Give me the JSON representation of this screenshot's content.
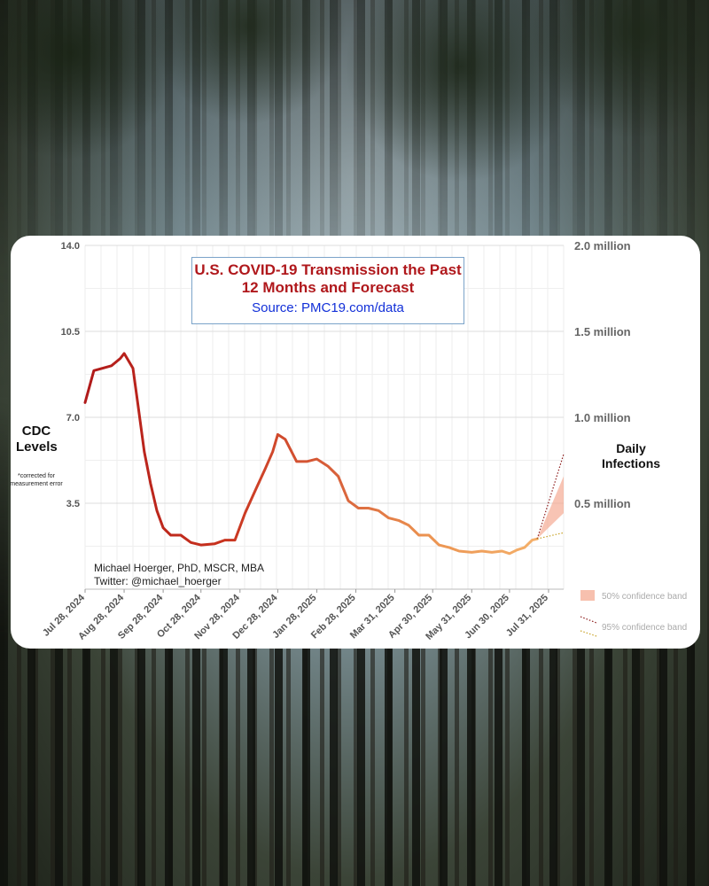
{
  "chart_data": {
    "type": "line",
    "title": "U.S. COVID-19 Transmission the Past 12 Months and Forecast",
    "subtitle": "Source: PMC19.com/data",
    "ylabel_left": "CDC Levels",
    "ylabel_left_note": "*corrected for measurement error",
    "ylabel_right": "Daily Infections",
    "y_left_ticks": [
      "3.5",
      "7.0",
      "10.5",
      "14.0"
    ],
    "y_right_ticks": [
      "0.5 million",
      "1.0 million",
      "1.5 million",
      "2.0 million"
    ],
    "ylim_left": [
      0,
      14
    ],
    "x_ticks": [
      "Jul 28, 2024",
      "Aug 28, 2024",
      "Sep 28, 2024",
      "Oct 28, 2024",
      "Nov 28, 2024",
      "Dec 28, 2024",
      "Jan 28, 2025",
      "Feb 28, 2025",
      "Mar 31, 2025",
      "Apr 30, 2025",
      "May 31, 2025",
      "Jun 30, 2025",
      "Jul 31, 2025"
    ],
    "credit": [
      "Michael Hoerger, PhD, MSCR, MBA",
      "Twitter: @michael_hoerger"
    ],
    "legend": [
      {
        "label": "50% confidence band",
        "color": "#f4a58c"
      },
      {
        "label": "95% confidence band",
        "color": "#8b1a1a"
      }
    ],
    "legend_position": "bottom-right",
    "grid": true,
    "series": [
      {
        "values": [
          {
            "x": "2024-07-28",
            "y": 7.6
          },
          {
            "x": "2024-08-04",
            "y": 8.9
          },
          {
            "x": "2024-08-11",
            "y": 9.0
          },
          {
            "x": "2024-08-18",
            "y": 9.1
          },
          {
            "x": "2024-08-25",
            "y": 9.4
          },
          {
            "x": "2024-08-28",
            "y": 9.6
          },
          {
            "x": "2024-09-04",
            "y": 9.0
          },
          {
            "x": "2024-09-08",
            "y": 7.5
          },
          {
            "x": "2024-09-13",
            "y": 5.6
          },
          {
            "x": "2024-09-18",
            "y": 4.3
          },
          {
            "x": "2024-09-23",
            "y": 3.2
          },
          {
            "x": "2024-09-28",
            "y": 2.5
          },
          {
            "x": "2024-10-04",
            "y": 2.2
          },
          {
            "x": "2024-10-12",
            "y": 2.2
          },
          {
            "x": "2024-10-20",
            "y": 1.9
          },
          {
            "x": "2024-10-28",
            "y": 1.8
          },
          {
            "x": "2024-11-08",
            "y": 1.85
          },
          {
            "x": "2024-11-16",
            "y": 2.0
          },
          {
            "x": "2024-11-24",
            "y": 2.0
          },
          {
            "x": "2024-12-02",
            "y": 3.1
          },
          {
            "x": "2024-12-10",
            "y": 4.0
          },
          {
            "x": "2024-12-18",
            "y": 4.9
          },
          {
            "x": "2024-12-24",
            "y": 5.6
          },
          {
            "x": "2024-12-28",
            "y": 6.3
          },
          {
            "x": "2025-01-03",
            "y": 6.1
          },
          {
            "x": "2025-01-12",
            "y": 5.2
          },
          {
            "x": "2025-01-20",
            "y": 5.2
          },
          {
            "x": "2025-01-28",
            "y": 5.3
          },
          {
            "x": "2025-02-06",
            "y": 5.0
          },
          {
            "x": "2025-02-14",
            "y": 4.6
          },
          {
            "x": "2025-02-22",
            "y": 3.6
          },
          {
            "x": "2025-03-02",
            "y": 3.3
          },
          {
            "x": "2025-03-10",
            "y": 3.3
          },
          {
            "x": "2025-03-18",
            "y": 3.2
          },
          {
            "x": "2025-03-26",
            "y": 2.9
          },
          {
            "x": "2025-04-03",
            "y": 2.8
          },
          {
            "x": "2025-04-11",
            "y": 2.6
          },
          {
            "x": "2025-04-19",
            "y": 2.2
          },
          {
            "x": "2025-04-27",
            "y": 2.2
          },
          {
            "x": "2025-05-05",
            "y": 1.8
          },
          {
            "x": "2025-05-13",
            "y": 1.7
          },
          {
            "x": "2025-05-21",
            "y": 1.55
          },
          {
            "x": "2025-05-31",
            "y": 1.5
          },
          {
            "x": "2025-06-08",
            "y": 1.55
          },
          {
            "x": "2025-06-16",
            "y": 1.5
          },
          {
            "x": "2025-06-24",
            "y": 1.55
          },
          {
            "x": "2025-06-30",
            "y": 1.45
          },
          {
            "x": "2025-07-06",
            "y": 1.6
          },
          {
            "x": "2025-07-12",
            "y": 1.7
          },
          {
            "x": "2025-07-18",
            "y": 2.0
          },
          {
            "x": "2025-07-22",
            "y": 2.05
          }
        ]
      }
    ],
    "forecast": {
      "start": {
        "x": "2025-07-22",
        "y": 2.05
      },
      "end_x": "2025-08-12",
      "band50_end": [
        3.1,
        4.6
      ],
      "band95_end": [
        2.3,
        5.5
      ]
    }
  }
}
